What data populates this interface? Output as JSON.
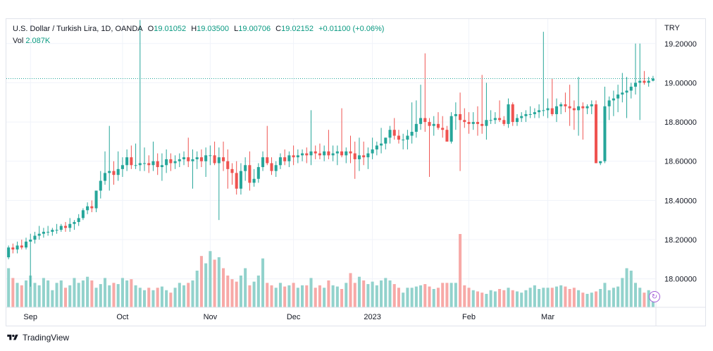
{
  "legend": {
    "symbol": "U.S. Dollar / Turkish Lira, 1D, OANDA",
    "open_key": "O",
    "open": "19.01052",
    "high_key": "H",
    "high": "19.03500",
    "low_key": "L",
    "low": "19.00706",
    "close_key": "C",
    "close": "19.02152",
    "change": "+0.01100 (+0.06%)",
    "vol_key": "Vol",
    "vol": "2.087K"
  },
  "currency": "TRY",
  "brand": "TradingView",
  "colors": {
    "up": "#26a69a",
    "down": "#ef5350",
    "vol_up": "#92d2cc",
    "vol_down": "#f7a9a7",
    "last_line": "#26a69a"
  },
  "chart_data": {
    "type": "candlestick",
    "y_ticks": [
      "19.20000",
      "19.00000",
      "18.80000",
      "18.60000",
      "18.40000",
      "18.20000",
      "18.00000"
    ],
    "y_tick_values": [
      19.2,
      19.0,
      18.8,
      18.6,
      18.4,
      18.2,
      18.0
    ],
    "x_ticks": [
      {
        "label": "Sep",
        "index": 5
      },
      {
        "label": "Oct",
        "index": 26
      },
      {
        "label": "Nov",
        "index": 46
      },
      {
        "label": "Dec",
        "index": 65
      },
      {
        "label": "2023",
        "index": 83
      },
      {
        "label": "Feb",
        "index": 105
      },
      {
        "label": "Mar",
        "index": 123
      }
    ],
    "last_close": 19.02152,
    "ylim": [
      17.855,
      19.325
    ],
    "ohlc": [
      [
        18.11,
        18.17,
        18.1,
        18.16
      ],
      [
        18.16,
        18.18,
        18.13,
        18.15
      ],
      [
        18.15,
        18.19,
        18.13,
        18.17
      ],
      [
        18.17,
        18.2,
        18.15,
        18.16
      ],
      [
        18.16,
        18.21,
        18.15,
        18.19
      ],
      [
        18.19,
        18.23,
        17.96,
        18.2
      ],
      [
        18.2,
        18.24,
        18.18,
        18.22
      ],
      [
        18.22,
        18.27,
        18.2,
        18.23
      ],
      [
        18.23,
        18.26,
        18.21,
        18.24
      ],
      [
        18.24,
        18.27,
        18.22,
        18.24
      ],
      [
        18.24,
        18.26,
        18.22,
        18.25
      ],
      [
        18.25,
        18.28,
        18.23,
        18.25
      ],
      [
        18.25,
        18.28,
        18.24,
        18.27
      ],
      [
        18.27,
        18.29,
        18.24,
        18.26
      ],
      [
        18.26,
        18.31,
        18.24,
        18.28
      ],
      [
        18.28,
        18.3,
        18.25,
        18.29
      ],
      [
        18.29,
        18.33,
        18.27,
        18.31
      ],
      [
        18.31,
        18.36,
        18.3,
        18.35
      ],
      [
        18.35,
        18.39,
        18.33,
        18.37
      ],
      [
        18.37,
        18.4,
        18.34,
        18.36
      ],
      [
        18.36,
        18.44,
        18.34,
        18.45
      ],
      [
        18.45,
        18.55,
        18.41,
        18.5
      ],
      [
        18.5,
        18.65,
        18.48,
        18.54
      ],
      [
        18.54,
        18.78,
        18.45,
        18.55
      ],
      [
        18.55,
        18.6,
        18.48,
        18.53
      ],
      [
        18.53,
        18.65,
        18.5,
        18.56
      ],
      [
        18.56,
        18.62,
        18.52,
        18.58
      ],
      [
        18.58,
        18.66,
        18.55,
        18.62
      ],
      [
        18.62,
        18.68,
        18.56,
        18.58
      ],
      [
        18.58,
        18.69,
        18.56,
        18.58
      ],
      [
        18.58,
        19.32,
        18.55,
        18.59
      ],
      [
        18.59,
        18.67,
        18.55,
        18.59
      ],
      [
        18.59,
        18.63,
        18.54,
        18.58
      ],
      [
        18.58,
        18.7,
        18.55,
        18.6
      ],
      [
        18.6,
        18.64,
        18.53,
        18.57
      ],
      [
        18.57,
        18.64,
        18.5,
        18.58
      ],
      [
        18.58,
        18.66,
        18.54,
        18.61
      ],
      [
        18.61,
        18.64,
        18.55,
        18.59
      ],
      [
        18.59,
        18.63,
        18.56,
        18.6
      ],
      [
        18.6,
        18.64,
        18.57,
        18.61
      ],
      [
        18.61,
        18.65,
        18.58,
        18.62
      ],
      [
        18.62,
        18.72,
        18.57,
        18.6
      ],
      [
        18.6,
        18.66,
        18.46,
        18.61
      ],
      [
        18.61,
        18.65,
        18.56,
        18.62
      ],
      [
        18.62,
        18.66,
        18.57,
        18.6
      ],
      [
        18.6,
        18.67,
        18.52,
        18.63
      ],
      [
        18.63,
        18.68,
        18.58,
        18.63
      ],
      [
        18.63,
        18.7,
        18.58,
        18.59
      ],
      [
        18.59,
        18.67,
        18.3,
        18.62
      ],
      [
        18.62,
        18.7,
        18.55,
        18.6
      ],
      [
        18.6,
        18.66,
        18.46,
        18.56
      ],
      [
        18.56,
        18.59,
        18.48,
        18.54
      ],
      [
        18.54,
        18.6,
        18.43,
        18.46
      ],
      [
        18.46,
        18.59,
        18.43,
        18.55
      ],
      [
        18.55,
        18.62,
        18.5,
        18.58
      ],
      [
        18.58,
        18.65,
        18.45,
        18.49
      ],
      [
        18.49,
        18.56,
        18.47,
        18.51
      ],
      [
        18.51,
        18.59,
        18.49,
        18.57
      ],
      [
        18.57,
        18.65,
        18.55,
        18.62
      ],
      [
        18.62,
        18.78,
        18.58,
        18.59
      ],
      [
        18.59,
        18.62,
        18.53,
        18.55
      ],
      [
        18.55,
        18.6,
        18.52,
        18.58
      ],
      [
        18.58,
        18.64,
        18.56,
        18.62
      ],
      [
        18.62,
        18.66,
        18.58,
        18.6
      ],
      [
        18.6,
        18.65,
        18.57,
        18.63
      ],
      [
        18.63,
        18.68,
        18.58,
        18.62
      ],
      [
        18.62,
        18.66,
        18.59,
        18.63
      ],
      [
        18.63,
        18.66,
        18.6,
        18.64
      ],
      [
        18.64,
        18.67,
        18.59,
        18.63
      ],
      [
        18.63,
        18.86,
        18.58,
        18.65
      ],
      [
        18.65,
        18.68,
        18.61,
        18.64
      ],
      [
        18.64,
        18.69,
        18.61,
        18.63
      ],
      [
        18.63,
        18.68,
        18.6,
        18.65
      ],
      [
        18.65,
        18.76,
        18.61,
        18.63
      ],
      [
        18.63,
        18.68,
        18.6,
        18.64
      ],
      [
        18.64,
        18.68,
        18.58,
        18.65
      ],
      [
        18.65,
        18.87,
        18.62,
        18.63
      ],
      [
        18.63,
        18.67,
        18.59,
        18.65
      ],
      [
        18.65,
        18.73,
        18.59,
        18.64
      ],
      [
        18.64,
        18.7,
        18.51,
        18.61
      ],
      [
        18.61,
        18.72,
        18.55,
        18.63
      ],
      [
        18.63,
        18.7,
        18.58,
        18.62
      ],
      [
        18.62,
        18.67,
        18.56,
        18.64
      ],
      [
        18.64,
        18.72,
        18.61,
        18.66
      ],
      [
        18.66,
        18.7,
        18.63,
        18.68
      ],
      [
        18.68,
        18.77,
        18.64,
        18.69
      ],
      [
        18.69,
        18.72,
        18.66,
        18.72
      ],
      [
        18.72,
        18.78,
        18.69,
        18.76
      ],
      [
        18.76,
        18.82,
        18.71,
        18.73
      ],
      [
        18.73,
        18.76,
        18.69,
        18.71
      ],
      [
        18.71,
        18.74,
        18.66,
        18.71
      ],
      [
        18.71,
        18.76,
        18.66,
        18.73
      ],
      [
        18.73,
        18.9,
        18.69,
        18.75
      ],
      [
        18.75,
        18.91,
        18.72,
        18.79
      ],
      [
        18.79,
        18.99,
        18.76,
        18.82
      ],
      [
        18.82,
        19.15,
        18.75,
        18.8
      ],
      [
        18.8,
        18.82,
        18.52,
        18.78
      ],
      [
        18.78,
        18.83,
        18.73,
        18.79
      ],
      [
        18.79,
        18.85,
        18.76,
        18.77
      ],
      [
        18.77,
        18.83,
        18.72,
        18.76
      ],
      [
        18.76,
        18.78,
        18.71,
        18.7
      ],
      [
        18.7,
        18.85,
        18.69,
        18.83
      ],
      [
        18.83,
        18.9,
        18.76,
        18.84
      ],
      [
        18.84,
        18.95,
        18.55,
        18.81
      ],
      [
        18.81,
        18.87,
        18.77,
        18.8
      ],
      [
        18.8,
        18.85,
        18.74,
        18.79
      ],
      [
        18.79,
        18.85,
        18.76,
        18.8
      ],
      [
        18.8,
        18.88,
        18.73,
        18.79
      ],
      [
        18.79,
        19.04,
        18.74,
        18.78
      ],
      [
        18.78,
        19.0,
        18.71,
        18.81
      ],
      [
        18.81,
        18.86,
        18.79,
        18.81
      ],
      [
        18.81,
        18.85,
        18.79,
        18.82
      ],
      [
        18.82,
        18.91,
        18.8,
        18.81
      ],
      [
        18.81,
        18.83,
        18.78,
        18.79
      ],
      [
        18.79,
        18.92,
        18.77,
        18.89
      ],
      [
        18.89,
        18.9,
        18.78,
        18.8
      ],
      [
        18.8,
        18.84,
        18.78,
        18.82
      ],
      [
        18.82,
        18.85,
        18.8,
        18.83
      ],
      [
        18.83,
        18.86,
        18.8,
        18.84
      ],
      [
        18.84,
        18.88,
        18.82,
        18.84
      ],
      [
        18.84,
        18.87,
        18.82,
        18.85
      ],
      [
        18.85,
        18.89,
        18.82,
        18.86
      ],
      [
        18.86,
        19.26,
        18.83,
        18.86
      ],
      [
        18.86,
        18.92,
        18.82,
        18.87
      ],
      [
        18.87,
        19.02,
        18.83,
        18.84
      ],
      [
        18.84,
        18.92,
        18.8,
        18.88
      ],
      [
        18.88,
        18.9,
        18.84,
        18.89
      ],
      [
        18.89,
        18.95,
        18.85,
        18.88
      ],
      [
        18.88,
        18.99,
        18.78,
        18.87
      ],
      [
        18.87,
        18.91,
        18.76,
        18.86
      ],
      [
        18.86,
        19.03,
        18.73,
        18.88
      ],
      [
        18.88,
        18.9,
        18.71,
        18.87
      ],
      [
        18.87,
        18.89,
        18.84,
        18.88
      ],
      [
        18.88,
        18.91,
        18.84,
        18.89
      ],
      [
        18.89,
        18.91,
        18.6,
        18.59
      ],
      [
        18.59,
        18.6,
        18.58,
        18.6
      ],
      [
        18.6,
        18.98,
        18.59,
        18.88
      ],
      [
        18.88,
        18.93,
        18.81,
        18.91
      ],
      [
        18.91,
        18.96,
        18.83,
        18.92
      ],
      [
        18.92,
        18.99,
        18.85,
        18.94
      ],
      [
        18.94,
        19.05,
        18.9,
        18.95
      ],
      [
        18.95,
        19.03,
        18.82,
        18.96
      ],
      [
        18.96,
        19.0,
        18.92,
        18.98
      ],
      [
        18.98,
        19.2,
        18.94,
        19.0
      ],
      [
        19.0,
        19.2,
        18.81,
        19.01
      ],
      [
        19.01,
        19.06,
        18.99,
        19.0
      ],
      [
        19.0,
        19.03,
        18.98,
        19.01
      ],
      [
        19.01052,
        19.035,
        19.00706,
        19.02152
      ]
    ],
    "volume": [
      1.6,
      1.2,
      1.0,
      0.9,
      1.1,
      1.3,
      1.0,
      0.9,
      1.2,
      1.1,
      0.7,
      1.0,
      1.1,
      0.8,
      0.9,
      1.2,
      1.0,
      1.1,
      1.25,
      1.1,
      0.8,
      0.95,
      1.2,
      0.9,
      1.0,
      0.95,
      1.2,
      1.1,
      1.15,
      0.9,
      0.8,
      0.7,
      0.8,
      0.7,
      0.8,
      0.85,
      0.7,
      0.6,
      0.8,
      1.0,
      0.9,
      1.0,
      1.1,
      1.5,
      2.1,
      1.8,
      2.3,
      1.95,
      2.05,
      1.6,
      1.3,
      1.15,
      1.05,
      1.3,
      1.6,
      0.9,
      1.05,
      1.3,
      2.0,
      1.0,
      0.9,
      0.8,
      1.0,
      0.85,
      0.9,
      1.0,
      0.8,
      0.9,
      0.9,
      1.2,
      0.8,
      0.9,
      0.8,
      1.1,
      0.9,
      0.85,
      0.75,
      1.0,
      1.4,
      1.0,
      1.25,
      1.1,
      0.95,
      1.05,
      0.9,
      1.1,
      1.2,
      1.1,
      0.95,
      0.8,
      0.6,
      0.8,
      0.8,
      0.85,
      0.9,
      0.95,
      0.85,
      0.75,
      0.8,
      1.0,
      1.0,
      1.0,
      1.0,
      3.0,
      0.9,
      0.8,
      0.7,
      0.65,
      0.6,
      0.55,
      0.7,
      0.65,
      0.75,
      0.7,
      0.8,
      0.7,
      0.65,
      0.6,
      0.7,
      0.8,
      0.9,
      0.75,
      0.8,
      0.8,
      0.8,
      0.85,
      0.9,
      0.85,
      0.75,
      0.8,
      0.7,
      0.6,
      0.55,
      0.6,
      0.65,
      0.75,
      1.0,
      0.7,
      0.8,
      0.85,
      1.2,
      1.6,
      1.5,
      1.0,
      0.8,
      0.6,
      0.7,
      0.6
    ]
  }
}
